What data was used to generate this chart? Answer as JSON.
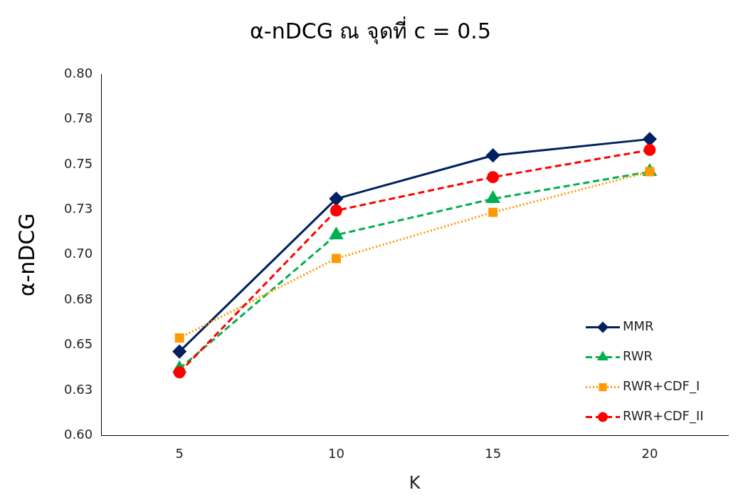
{
  "chart_data": {
    "type": "line",
    "title": "α-nDCG ณ จุดที่ c = 0.5",
    "xlabel": "K",
    "ylabel": "α-nDCG",
    "categories": [
      "5",
      "10",
      "15",
      "20"
    ],
    "series": [
      {
        "name": "MMR",
        "color": "#002060",
        "values": [
          0.6465,
          0.731,
          0.755,
          0.764
        ],
        "marker": "diamond",
        "line_style": "solid"
      },
      {
        "name": "RWR",
        "color": "#00b050",
        "values": [
          0.637,
          0.711,
          0.731,
          0.746
        ],
        "marker": "triangle",
        "line_style": "dashed"
      },
      {
        "name": "RWR+CDF_I",
        "color": "#ff9900",
        "values": [
          0.654,
          0.698,
          0.7235,
          0.746
        ],
        "marker": "square",
        "line_style": "dotted"
      },
      {
        "name": "RWR+CDF_II",
        "color": "#ff0000",
        "values": [
          0.635,
          0.7245,
          0.743,
          0.758
        ],
        "marker": "circle",
        "line_style": "dashed"
      }
    ],
    "ylim": [
      0.6,
      0.8
    ],
    "yticks": [
      {
        "value": 0.6,
        "label": "0.60"
      },
      {
        "value": 0.625,
        "label": "0.63"
      },
      {
        "value": 0.65,
        "label": "0.65"
      },
      {
        "value": 0.675,
        "label": "0.68"
      },
      {
        "value": 0.7,
        "label": "0.70"
      },
      {
        "value": 0.725,
        "label": "0.73"
      },
      {
        "value": 0.75,
        "label": "0.75"
      },
      {
        "value": 0.775,
        "label": "0.78"
      },
      {
        "value": 0.8,
        "label": "0.80"
      }
    ],
    "grid": false,
    "legend": "bottom right"
  }
}
